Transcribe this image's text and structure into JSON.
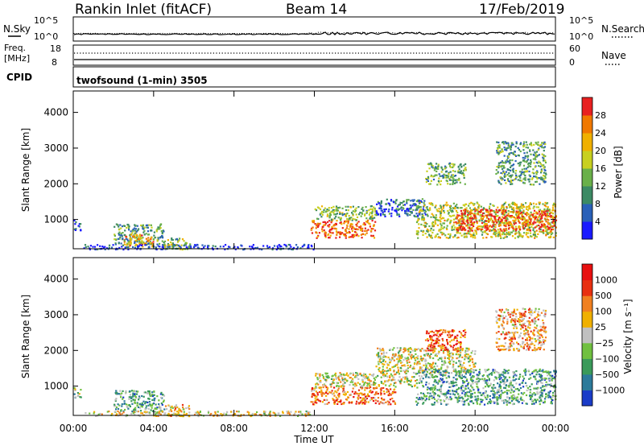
{
  "header": {
    "station": "Rankin Inlet (fitACF)",
    "beam": "Beam 14",
    "date": "17/Feb/2019"
  },
  "top_panels": {
    "nsky_label": "N.Sky",
    "nsearch_label": "N.Search",
    "noise_ticks": [
      "10^5",
      "10^0"
    ],
    "freq_label_1": "Freq.",
    "freq_label_2": "[MHz]",
    "freq_ticks": [
      "18",
      "8"
    ],
    "nave_label": "Nave",
    "nave_ticks": [
      "60",
      "0"
    ],
    "cpid_label": "CPID",
    "cpid_value": "twofsound (1-min) 3505"
  },
  "chart_data": [
    {
      "type": "heatmap",
      "title": "",
      "xlabel": "Time UT",
      "ylabel": "Slant Range [km]",
      "x_tick_labels": [
        "00:00",
        "04:00",
        "08:00",
        "12:00",
        "16:00",
        "20:00",
        "00:00"
      ],
      "x_hours": [
        0,
        4,
        8,
        12,
        16,
        20,
        24
      ],
      "y_ticks": [
        1000,
        2000,
        3000,
        4000
      ],
      "ylim": [
        180,
        4600
      ],
      "colorbar": {
        "label": "Power [dB]",
        "ticks": [
          "4",
          "8",
          "12",
          "16",
          "20",
          "24",
          "28"
        ],
        "tick_values": [
          4,
          8,
          12,
          16,
          20,
          24,
          28
        ],
        "range": [
          0,
          32
        ],
        "colors": [
          "#1a1aff",
          "#2a60b8",
          "#3c8a64",
          "#6ab04a",
          "#c8d020",
          "#f0b000",
          "#f07800",
          "#e82020"
        ]
      },
      "regions": [
        {
          "x": [
            0.0,
            0.35
          ],
          "y": [
            700,
            1000
          ],
          "level": 0.15
        },
        {
          "x": [
            2.0,
            4.5
          ],
          "y": [
            300,
            900
          ],
          "level": 0.35
        },
        {
          "x": [
            2.5,
            4.0
          ],
          "y": [
            250,
            600
          ],
          "level": 0.7
        },
        {
          "x": [
            0.5,
            12.0
          ],
          "y": [
            180,
            320
          ],
          "level": 0.1
        },
        {
          "x": [
            4.5,
            5.8
          ],
          "y": [
            180,
            500
          ],
          "level": 0.45
        },
        {
          "x": [
            11.8,
            15.0
          ],
          "y": [
            500,
            1000
          ],
          "level": 0.85
        },
        {
          "x": [
            12.0,
            15.0
          ],
          "y": [
            1000,
            1400
          ],
          "level": 0.45
        },
        {
          "x": [
            15.0,
            17.5
          ],
          "y": [
            1100,
            1600
          ],
          "level": 0.2
        },
        {
          "x": [
            17.0,
            24.0
          ],
          "y": [
            500,
            1500
          ],
          "level": 0.55
        },
        {
          "x": [
            19.0,
            24.0
          ],
          "y": [
            700,
            1300
          ],
          "level": 0.9
        },
        {
          "x": [
            21.0,
            23.5
          ],
          "y": [
            2000,
            3200
          ],
          "level": 0.35
        },
        {
          "x": [
            17.5,
            19.5
          ],
          "y": [
            2000,
            2600
          ],
          "level": 0.4
        }
      ]
    },
    {
      "type": "heatmap",
      "title": "",
      "xlabel": "Time UT",
      "ylabel": "Slant Range [km]",
      "x_tick_labels": [
        "00:00",
        "04:00",
        "08:00",
        "12:00",
        "16:00",
        "20:00",
        "00:00"
      ],
      "x_hours": [
        0,
        4,
        8,
        12,
        16,
        20,
        24
      ],
      "y_ticks": [
        1000,
        2000,
        3000,
        4000
      ],
      "ylim": [
        180,
        4600
      ],
      "colorbar": {
        "label": "Velocity [m s⁻¹]",
        "ticks": [
          "1000",
          "500",
          "100",
          "25",
          "−25",
          "−100",
          "−500",
          "−1000"
        ],
        "colors": [
          "#1a3cc8",
          "#2c7a9a",
          "#3a9a5a",
          "#70c040",
          "#c0c0c0",
          "#f0b000",
          "#f08020",
          "#e83010",
          "#e81010"
        ]
      },
      "regions": [
        {
          "x": [
            0.0,
            0.35
          ],
          "y": [
            700,
            1000
          ],
          "level": 0.35
        },
        {
          "x": [
            2.0,
            4.5
          ],
          "y": [
            300,
            900
          ],
          "level": 0.3
        },
        {
          "x": [
            0.5,
            12.0
          ],
          "y": [
            180,
            320
          ],
          "level": 0.55
        },
        {
          "x": [
            4.5,
            5.8
          ],
          "y": [
            180,
            500
          ],
          "level": 0.6
        },
        {
          "x": [
            11.8,
            16.0
          ],
          "y": [
            500,
            1000
          ],
          "level": 0.75
        },
        {
          "x": [
            12.0,
            17.0
          ],
          "y": [
            1000,
            1400
          ],
          "level": 0.5
        },
        {
          "x": [
            15.0,
            20.0
          ],
          "y": [
            1400,
            2100
          ],
          "level": 0.5
        },
        {
          "x": [
            17.0,
            24.0
          ],
          "y": [
            500,
            1500
          ],
          "level": 0.3
        },
        {
          "x": [
            17.5,
            19.5
          ],
          "y": [
            2000,
            2600
          ],
          "level": 0.8
        },
        {
          "x": [
            21.0,
            23.5
          ],
          "y": [
            2000,
            3200
          ],
          "level": 0.65
        }
      ]
    }
  ]
}
